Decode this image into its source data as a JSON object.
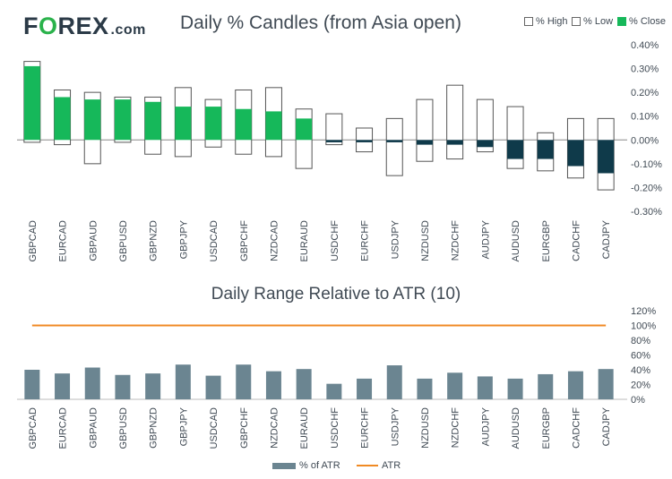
{
  "brand": {
    "part1": "F",
    "part2": "O",
    "part3": "REX",
    "suffix": ".com"
  },
  "chart_data": [
    {
      "type": "bar",
      "title": "Daily % Candles (from Asia open)",
      "legend": [
        "% High",
        "% Low",
        "% Close"
      ],
      "ylim": [
        -0.3,
        0.4
      ],
      "yticks": [
        -0.3,
        -0.2,
        -0.1,
        0.0,
        0.1,
        0.2,
        0.3,
        0.4
      ],
      "ytick_labels": [
        "-0.30%",
        "-0.20%",
        "-0.10%",
        "0.00%",
        "0.10%",
        "0.20%",
        "0.30%",
        "0.40%"
      ],
      "categories": [
        "GBPCAD",
        "EURCAD",
        "GBPAUD",
        "GBPUSD",
        "GBPNZD",
        "GBPJPY",
        "USDCAD",
        "GBPCHF",
        "NZDCAD",
        "EURAUD",
        "USDCHF",
        "EURCHF",
        "USDJPY",
        "NZDUSD",
        "NZDCHF",
        "AUDJPY",
        "AUDUSD",
        "EURGBP",
        "CADCHF",
        "CADJPY"
      ],
      "series": [
        {
          "name": "% High",
          "values": [
            0.33,
            0.21,
            0.2,
            0.18,
            0.18,
            0.22,
            0.17,
            0.21,
            0.22,
            0.13,
            0.11,
            0.05,
            0.09,
            0.17,
            0.23,
            0.17,
            0.14,
            0.03,
            0.09,
            0.09
          ]
        },
        {
          "name": "% Low",
          "values": [
            -0.01,
            -0.02,
            -0.1,
            -0.01,
            -0.06,
            -0.07,
            -0.03,
            -0.06,
            -0.07,
            -0.12,
            -0.02,
            -0.05,
            -0.15,
            -0.09,
            -0.08,
            -0.05,
            -0.12,
            -0.13,
            -0.16,
            -0.21
          ]
        },
        {
          "name": "% Close",
          "values": [
            0.31,
            0.18,
            0.17,
            0.17,
            0.16,
            0.14,
            0.14,
            0.13,
            0.12,
            0.09,
            -0.01,
            -0.01,
            -0.01,
            -0.02,
            -0.02,
            -0.03,
            -0.08,
            -0.08,
            -0.11,
            -0.14
          ]
        }
      ],
      "colors": {
        "positive": "#16b85a",
        "negative": "#0f3a4a",
        "range_box": "#ffffff",
        "range_border": "#555555"
      }
    },
    {
      "type": "bar",
      "title": "Daily Range Relative to ATR (10)",
      "legend": [
        "% of ATR",
        "ATR"
      ],
      "ylim": [
        0,
        120
      ],
      "yticks": [
        0,
        20,
        40,
        60,
        80,
        100,
        120
      ],
      "ytick_labels": [
        "0%",
        "20%",
        "40%",
        "60%",
        "80%",
        "100%",
        "120%"
      ],
      "categories": [
        "GBPCAD",
        "EURCAD",
        "GBPAUD",
        "GBPUSD",
        "GBPNZD",
        "GBPJPY",
        "USDCAD",
        "GBPCHF",
        "NZDCAD",
        "EURAUD",
        "USDCHF",
        "EURCHF",
        "USDJPY",
        "NZDUSD",
        "NZDCHF",
        "AUDJPY",
        "AUDUSD",
        "EURGBP",
        "CADCHF",
        "CADJPY"
      ],
      "series": [
        {
          "name": "% of ATR",
          "values": [
            40,
            35,
            43,
            33,
            35,
            47,
            32,
            47,
            38,
            41,
            21,
            28,
            46,
            28,
            36,
            31,
            28,
            34,
            38,
            41
          ]
        },
        {
          "name": "ATR",
          "values": [
            100,
            100,
            100,
            100,
            100,
            100,
            100,
            100,
            100,
            100,
            100,
            100,
            100,
            100,
            100,
            100,
            100,
            100,
            100,
            100
          ]
        }
      ],
      "colors": {
        "bar": "#6b8591",
        "line": "#f08a24"
      }
    }
  ]
}
